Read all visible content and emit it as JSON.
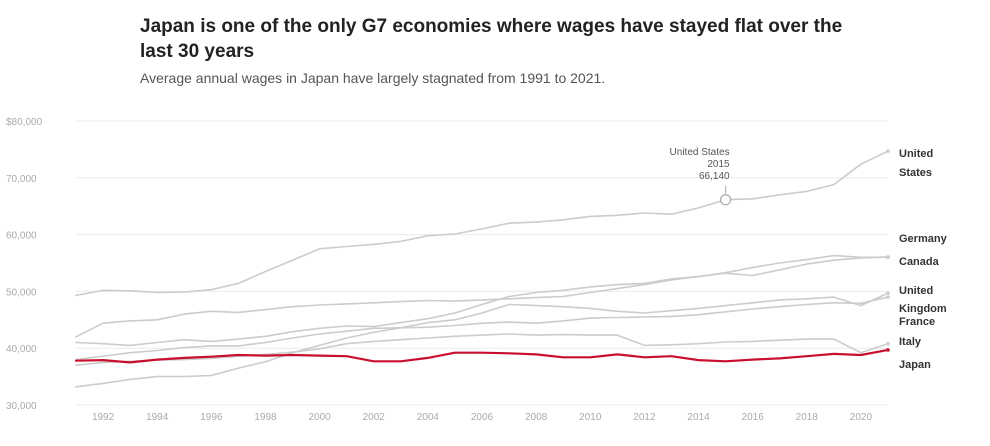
{
  "title": "Japan is one of the only G7 economies where wages have stayed flat over the last 30 years",
  "subtitle": "Average annual wages in Japan have largely stagnated from 1991 to 2021.",
  "colors": {
    "gray_line": "#cccccc",
    "japan": "#c8102e",
    "grid": "#ececec",
    "axis_text": "#aaaaaa"
  },
  "chart_data": {
    "type": "line",
    "title": "Japan is one of the only G7 economies where wages have stayed flat over the last 30 years",
    "subtitle": "Average annual wages in Japan have largely stagnated from 1991 to 2021.",
    "xlabel": "",
    "ylabel": "",
    "xlim": [
      1991,
      2021
    ],
    "ylim": [
      30000,
      80000
    ],
    "grid": true,
    "legend": "direct labels at right end of lines",
    "y_ticks": [
      {
        "value": 30000,
        "label": "30,000"
      },
      {
        "value": 40000,
        "label": "40,000"
      },
      {
        "value": 50000,
        "label": "50,000"
      },
      {
        "value": 60000,
        "label": "60,000"
      },
      {
        "value": 70000,
        "label": "70,000"
      },
      {
        "value": 80000,
        "label": "$80,000"
      }
    ],
    "x_ticks": [
      1992,
      1994,
      1996,
      1998,
      2000,
      2002,
      2004,
      2006,
      2008,
      2010,
      2012,
      2014,
      2016,
      2018,
      2020
    ],
    "x": [
      1991,
      1992,
      1993,
      1994,
      1995,
      1996,
      1997,
      1998,
      1999,
      2000,
      2001,
      2002,
      2003,
      2004,
      2005,
      2006,
      2007,
      2008,
      2009,
      2010,
      2011,
      2012,
      2013,
      2014,
      2015,
      2016,
      2017,
      2018,
      2019,
      2020,
      2021
    ],
    "series": [
      {
        "name": "United States",
        "label_lines": [
          "United",
          "States"
        ],
        "color": "#cccccc",
        "values": [
          49300,
          50200,
          50100,
          49800,
          49900,
          50300,
          51400,
          53500,
          55500,
          57500,
          57900,
          58300,
          58800,
          59800,
          60100,
          61000,
          62000,
          62200,
          62600,
          63200,
          63400,
          63800,
          63600,
          64700,
          66140,
          66300,
          67000,
          67600,
          68800,
          72400,
          74700
        ]
      },
      {
        "name": "Germany",
        "label_lines": [
          "Germany"
        ],
        "color": "#cccccc",
        "values": [
          42000,
          44400,
          44800,
          45000,
          46000,
          46500,
          46300,
          46800,
          47300,
          47600,
          47800,
          48000,
          48200,
          48400,
          48300,
          48500,
          48700,
          48900,
          49100,
          49800,
          50500,
          51200,
          52000,
          52600,
          53300,
          54200,
          55000,
          55600,
          56300,
          56000,
          56000
        ]
      },
      {
        "name": "Canada",
        "label_lines": [
          "Canada"
        ],
        "color": "#cccccc",
        "values": [
          41000,
          40800,
          40500,
          41000,
          41500,
          41200,
          41600,
          42100,
          42900,
          43500,
          43900,
          43800,
          44500,
          45200,
          46200,
          47700,
          49100,
          49800,
          50200,
          50800,
          51200,
          51400,
          52200,
          52600,
          53200,
          52800,
          53800,
          54800,
          55500,
          55900,
          56100
        ]
      },
      {
        "name": "United Kingdom",
        "label_lines": [
          "United",
          "Kingdom"
        ],
        "color": "#cccccc",
        "values": [
          33200,
          33800,
          34500,
          35000,
          35000,
          35200,
          36500,
          37600,
          39200,
          40500,
          41800,
          42800,
          43600,
          44500,
          45000,
          46200,
          47700,
          47500,
          47300,
          47000,
          46500,
          46200,
          46600,
          47000,
          47500,
          48000,
          48500,
          48700,
          49000,
          47500,
          49700
        ]
      },
      {
        "name": "France",
        "label_lines": [
          "France"
        ],
        "color": "#cccccc",
        "values": [
          38000,
          38600,
          39200,
          39600,
          40100,
          40400,
          40400,
          41000,
          41800,
          42500,
          43000,
          43500,
          43600,
          43700,
          44000,
          44400,
          44600,
          44400,
          44800,
          45300,
          45400,
          45500,
          45600,
          45900,
          46400,
          46900,
          47300,
          47700,
          48000,
          47900,
          49000
        ]
      },
      {
        "name": "Italy",
        "label_lines": [
          "Italy"
        ],
        "color": "#cccccc",
        "values": [
          37000,
          37500,
          37700,
          37900,
          38000,
          38200,
          38600,
          38900,
          39300,
          39900,
          40800,
          41200,
          41500,
          41800,
          42100,
          42300,
          42500,
          42300,
          42400,
          42300,
          42300,
          40500,
          40600,
          40800,
          41100,
          41200,
          41400,
          41600,
          41600,
          39200,
          40800
        ]
      },
      {
        "name": "Japan",
        "label_lines": [
          "Japan"
        ],
        "color": "#c8102e",
        "values": [
          37800,
          37900,
          37500,
          38000,
          38300,
          38500,
          38800,
          38700,
          38800,
          38700,
          38600,
          37700,
          37700,
          38300,
          39200,
          39200,
          39100,
          38900,
          38400,
          38400,
          38900,
          38400,
          38600,
          37900,
          37700,
          38000,
          38200,
          38600,
          39000,
          38800,
          39700
        ]
      }
    ],
    "annotations": [
      {
        "series": "United States",
        "x": 2015,
        "y": 66140,
        "lines": [
          "United States",
          "2015",
          "66,140"
        ]
      }
    ]
  }
}
